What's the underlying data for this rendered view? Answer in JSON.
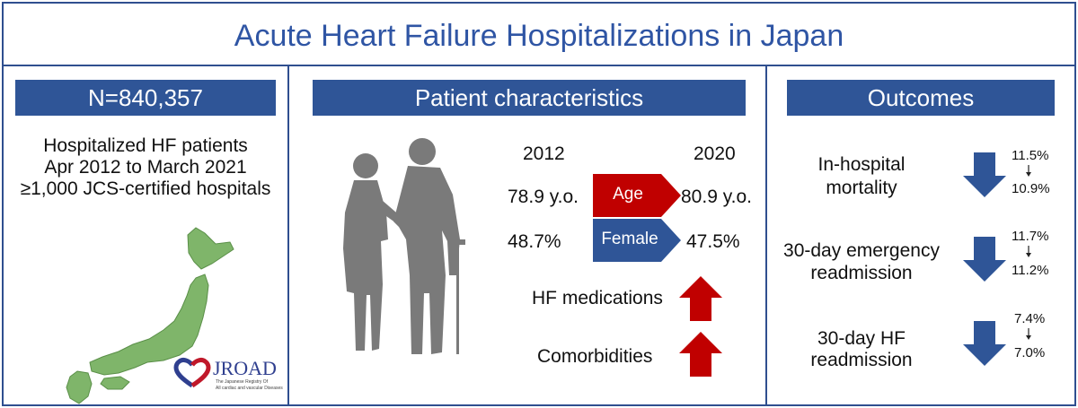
{
  "title": "Acute Heart Failure Hospitalizations in Japan",
  "panel_left": {
    "header": "N=840,357",
    "lines": [
      "Hospitalized HF patients",
      "Apr 2012 to March 2021",
      "≥1,000 JCS-certified hospitals"
    ],
    "logo": {
      "name": "JROAD",
      "sub1": "The Japanese Registry Of",
      "sub2": "All cardiac and vascular Diseases"
    }
  },
  "panel_middle": {
    "header": "Patient characteristics",
    "year_start": "2012",
    "year_end": "2020",
    "rows": [
      {
        "label": "Age",
        "start": "78.9 y.o.",
        "end": "80.9 y.o."
      },
      {
        "label": "Female",
        "start": "48.7%",
        "end": "47.5%"
      }
    ],
    "trends": [
      {
        "label": "HF medications",
        "direction": "up"
      },
      {
        "label": "Comorbidities",
        "direction": "up"
      }
    ]
  },
  "panel_right": {
    "header": "Outcomes",
    "outcomes": [
      {
        "line1": "In-hospital",
        "line2": "mortality",
        "from": "11.5%",
        "to": "10.9%",
        "direction": "down"
      },
      {
        "line1": "30-day emergency",
        "line2": "readmission",
        "from": "11.7%",
        "to": "11.2%",
        "direction": "down"
      },
      {
        "line1": "30-day HF",
        "line2": "readmission",
        "from": "7.4%",
        "to": "7.0%",
        "direction": "down"
      }
    ]
  },
  "colors": {
    "frame": "#2f4f8f",
    "title": "#2f55a4",
    "header_bg": "#2f5597",
    "age_tag": "#c00000",
    "female_tag": "#2f5597",
    "arrow_up": "#c00000",
    "arrow_down": "#2f5597",
    "map": "#7fb56a",
    "silhouette": "#7a7a7a"
  },
  "icons": [
    "japan-map-icon",
    "elderly-couple-silhouette-icon",
    "jroad-logo-icon"
  ]
}
